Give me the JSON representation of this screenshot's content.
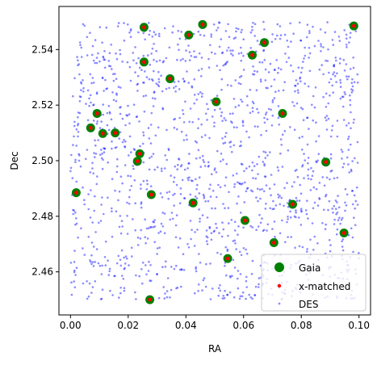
{
  "chart_data": {
    "type": "scatter",
    "title": "",
    "xlabel": "RA",
    "ylabel": "Dec",
    "xlim": [
      -0.004,
      0.104
    ],
    "ylim": [
      2.4445,
      2.5555
    ],
    "xticks": [
      0.0,
      0.02,
      0.04,
      0.06,
      0.08,
      0.1
    ],
    "xtick_labels": [
      "0.00",
      "0.02",
      "0.04",
      "0.06",
      "0.08",
      "0.10"
    ],
    "yticks": [
      2.46,
      2.48,
      2.5,
      2.52,
      2.54
    ],
    "ytick_labels": [
      "2.46",
      "2.48",
      "2.50",
      "2.52",
      "2.54"
    ],
    "grid": false,
    "legend_position": "lower right",
    "series": [
      {
        "name": "Gaia",
        "color": "#008000",
        "marker": "large circle",
        "points": [
          [
            0.0255,
            2.548
          ],
          [
            0.0458,
            2.549
          ],
          [
            0.041,
            2.5452
          ],
          [
            0.0982,
            2.5485
          ],
          [
            0.0672,
            2.5425
          ],
          [
            0.063,
            2.538
          ],
          [
            0.0255,
            2.5355
          ],
          [
            0.0345,
            2.5295
          ],
          [
            0.0505,
            2.5212
          ],
          [
            0.0735,
            2.517
          ],
          [
            0.0092,
            2.517
          ],
          [
            0.007,
            2.5118
          ],
          [
            0.0112,
            2.5098
          ],
          [
            0.0155,
            2.51
          ],
          [
            0.024,
            2.5025
          ],
          [
            0.0232,
            2.4998
          ],
          [
            0.0885,
            2.4995
          ],
          [
            0.002,
            2.4885
          ],
          [
            0.028,
            2.4878
          ],
          [
            0.0425,
            2.4848
          ],
          [
            0.077,
            2.4843
          ],
          [
            0.0605,
            2.4785
          ],
          [
            0.0948,
            2.474
          ],
          [
            0.0705,
            2.4705
          ],
          [
            0.0545,
            2.4648
          ],
          [
            0.0275,
            2.45
          ]
        ]
      },
      {
        "name": "x-matched",
        "color": "#ff0000",
        "marker": "small dot",
        "points": [
          [
            0.0255,
            2.548
          ],
          [
            0.0458,
            2.549
          ],
          [
            0.041,
            2.5452
          ],
          [
            0.0982,
            2.5485
          ],
          [
            0.0672,
            2.5425
          ],
          [
            0.063,
            2.538
          ],
          [
            0.0255,
            2.5355
          ],
          [
            0.0345,
            2.5295
          ],
          [
            0.0505,
            2.5212
          ],
          [
            0.0735,
            2.517
          ],
          [
            0.0092,
            2.517
          ],
          [
            0.007,
            2.5118
          ],
          [
            0.0112,
            2.5098
          ],
          [
            0.0155,
            2.51
          ],
          [
            0.024,
            2.5025
          ],
          [
            0.0232,
            2.4998
          ],
          [
            0.0885,
            2.4995
          ],
          [
            0.002,
            2.4885
          ],
          [
            0.028,
            2.4878
          ],
          [
            0.0425,
            2.4848
          ],
          [
            0.077,
            2.4843
          ],
          [
            0.0605,
            2.4785
          ],
          [
            0.0948,
            2.474
          ],
          [
            0.0705,
            2.4705
          ],
          [
            0.0545,
            2.4648
          ],
          [
            0.0275,
            2.45
          ]
        ]
      },
      {
        "name": "DES",
        "color": "#0000ff",
        "marker": "tiny dot, semi-transparent",
        "uniform_region": {
          "x": [
            0.0,
            0.1
          ],
          "y": [
            2.45,
            2.55
          ]
        },
        "count": 1500
      }
    ]
  }
}
